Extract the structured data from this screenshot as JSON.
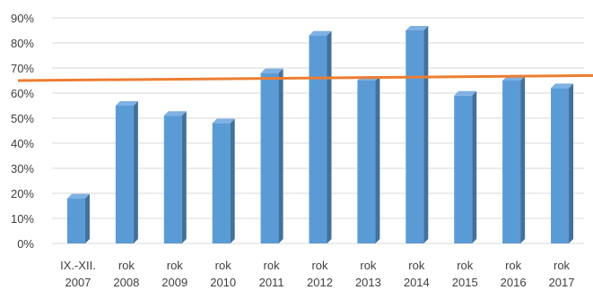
{
  "chart_data": {
    "type": "bar",
    "ylim": [
      0,
      90
    ],
    "yticks": [
      "0%",
      "10%",
      "20%",
      "30%",
      "40%",
      "50%",
      "60%",
      "70%",
      "80%",
      "90%"
    ],
    "grid": true,
    "categories": [
      [
        "IX.-XII.",
        "2007"
      ],
      [
        "rok",
        "2008"
      ],
      [
        "rok",
        "2009"
      ],
      [
        "rok",
        "2010"
      ],
      [
        "rok",
        "2011"
      ],
      [
        "rok",
        "2012"
      ],
      [
        "rok",
        "2013"
      ],
      [
        "rok",
        "2014"
      ],
      [
        "rok",
        "2015"
      ],
      [
        "rok",
        "2016"
      ],
      [
        "rok",
        "2017"
      ]
    ],
    "series": [
      {
        "values": [
          18,
          55,
          51,
          48,
          68,
          83,
          65,
          85,
          59,
          65,
          62
        ],
        "color": "#5b9bd5"
      }
    ],
    "reference_line": {
      "start": 65,
      "end": 67,
      "color": "#ed7d31"
    }
  }
}
